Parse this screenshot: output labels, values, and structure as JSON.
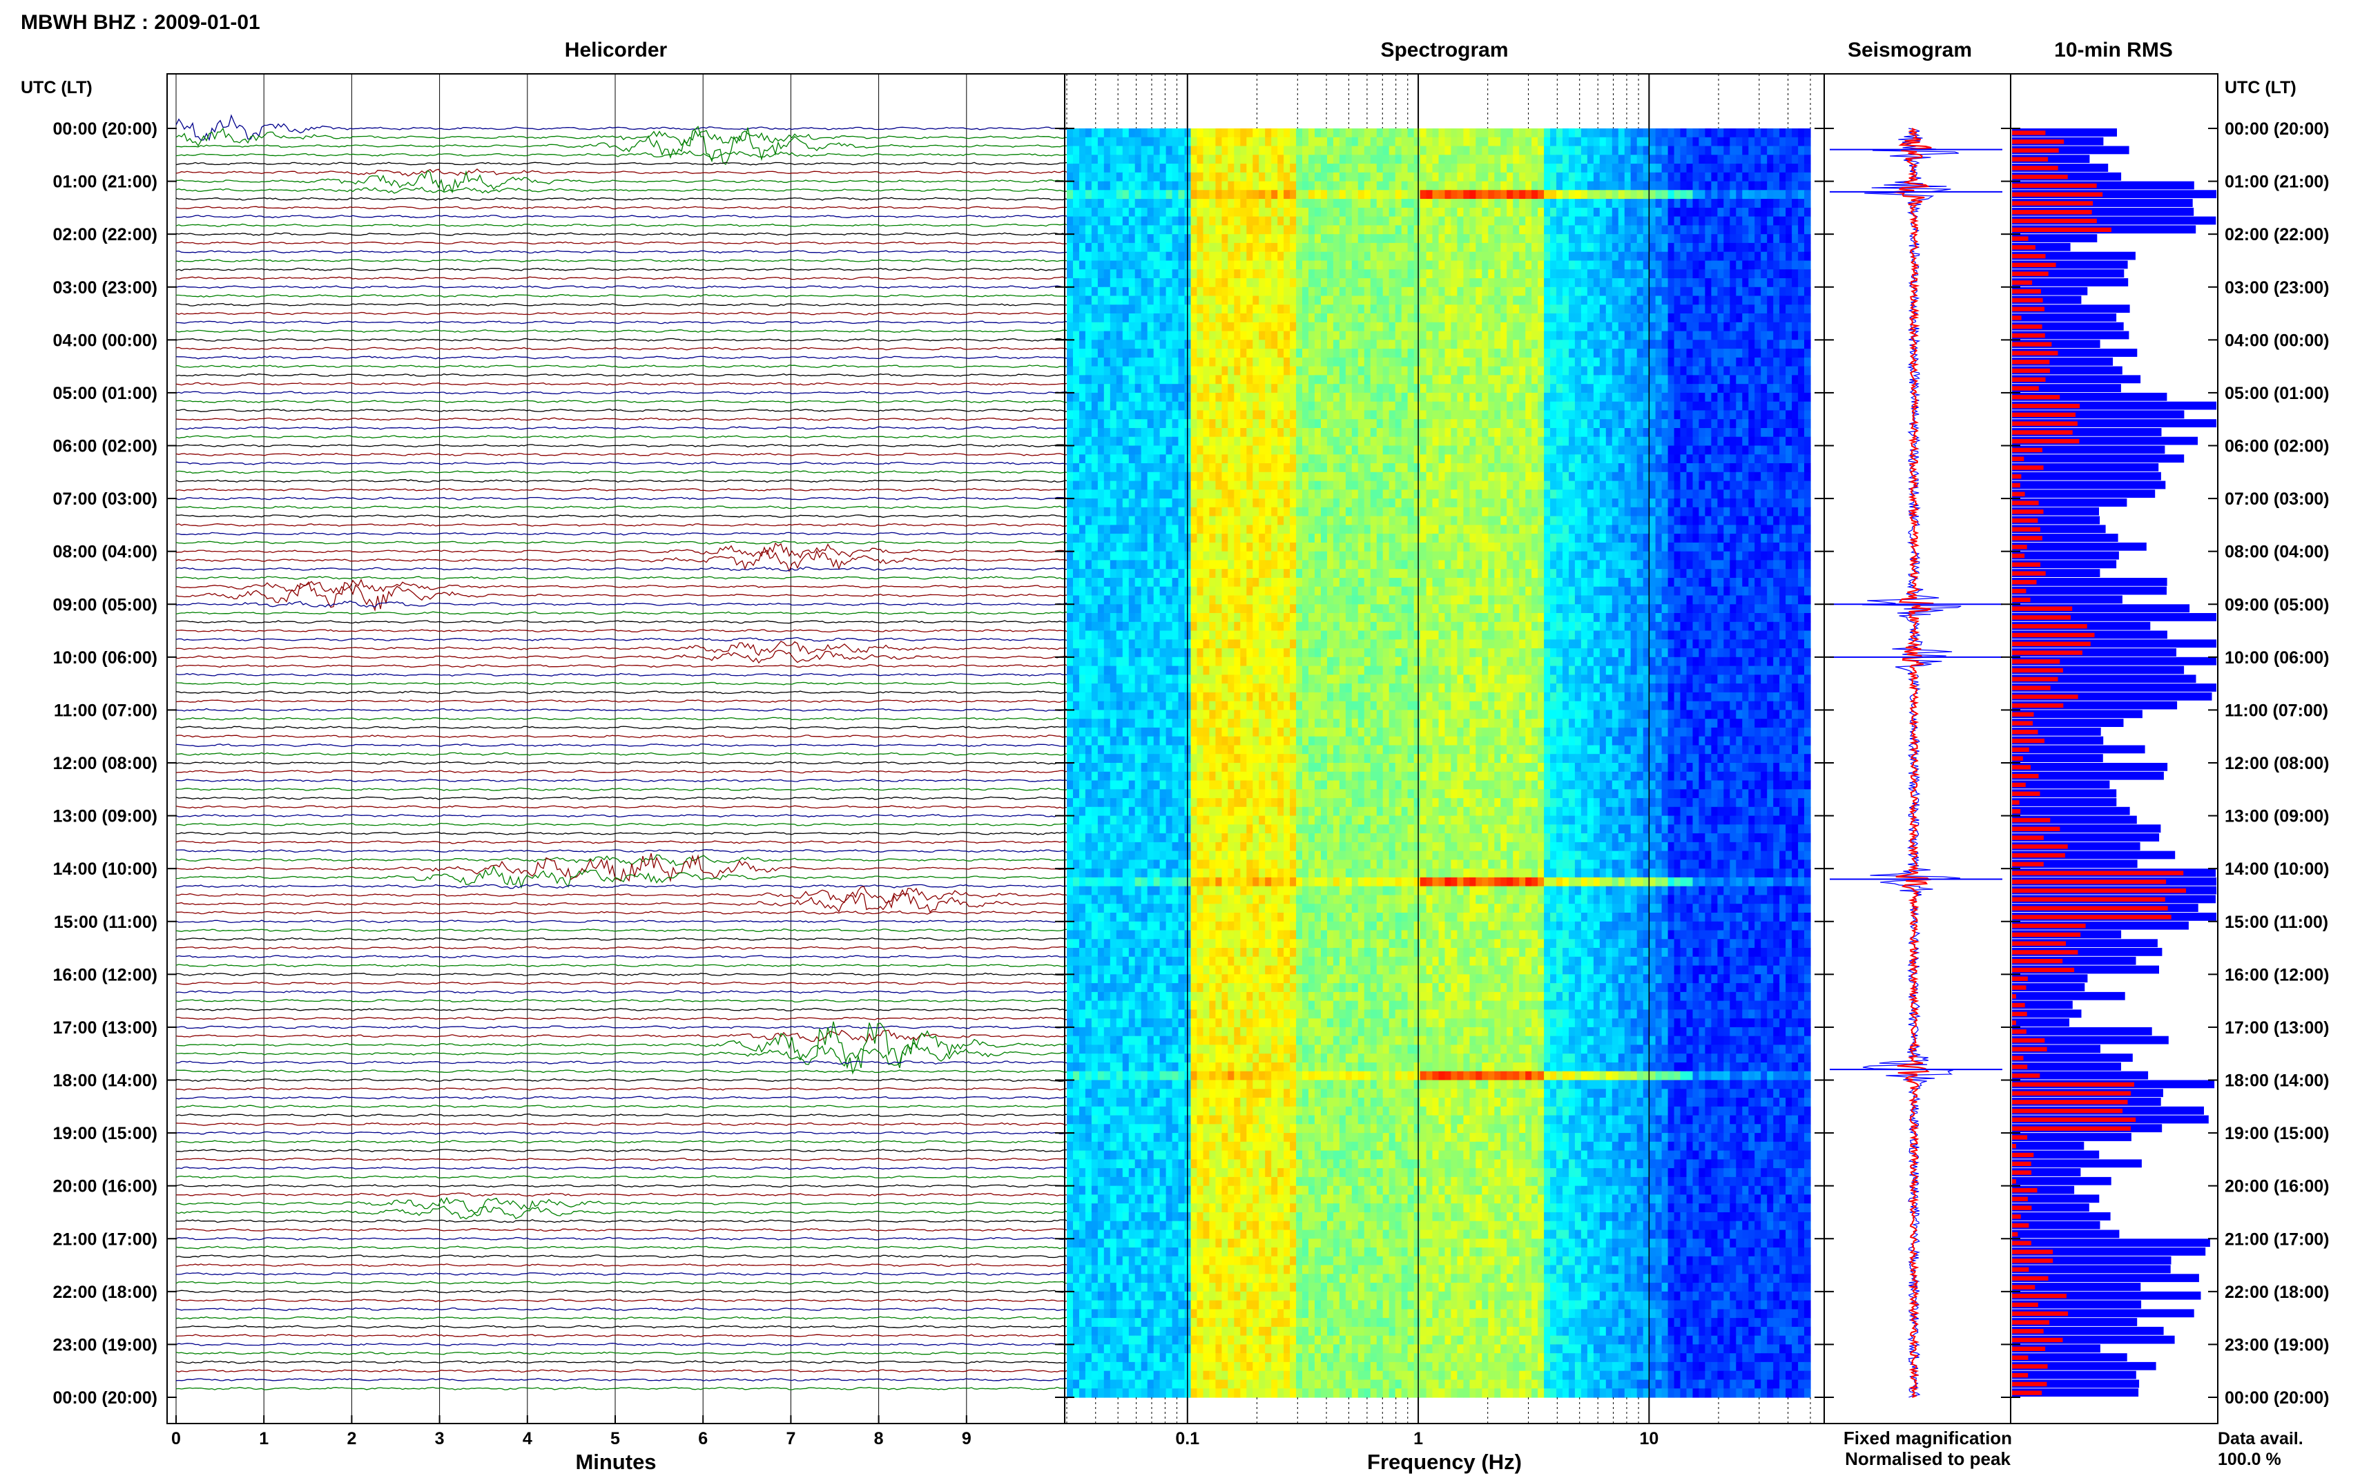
{
  "header": {
    "title": "MBWH BHZ : 2009-01-01",
    "utc_label": "UTC (LT)"
  },
  "panels": {
    "helicorder": "Helicorder",
    "spectrogram": "Spectrogram",
    "seismogram": "Seismogram",
    "rms": "10-min RMS"
  },
  "legend": {
    "fixed": "Fixed magnification",
    "normalised": "Normalised to peak",
    "fixed_color": "#1010ff",
    "normalised_color": "#ff1010"
  },
  "data_avail": {
    "label": "Data avail.",
    "value": "100.0 %"
  },
  "colors": {
    "trace_palette": [
      "#000000",
      "#8b0000",
      "#00008b",
      "#008000"
    ],
    "rms_fixed": "#0000ff",
    "rms_normalised": "#ff0000"
  },
  "chart_data": [
    {
      "type": "line",
      "panel": "Helicorder",
      "xlabel": "Minutes",
      "x_ticks": [
        "0",
        "1",
        "2",
        "3",
        "4",
        "5",
        "6",
        "7",
        "8",
        "9"
      ],
      "xlim": [
        0,
        10
      ],
      "y_ticks": [
        "00:00 (20:00)",
        "01:00 (21:00)",
        "02:00 (22:00)",
        "03:00 (23:00)",
        "04:00 (00:00)",
        "05:00 (01:00)",
        "06:00 (02:00)",
        "07:00 (03:00)",
        "08:00 (04:00)",
        "09:00 (05:00)",
        "10:00 (06:00)",
        "11:00 (07:00)",
        "12:00 (08:00)",
        "13:00 (09:00)",
        "14:00 (10:00)",
        "15:00 (11:00)",
        "16:00 (12:00)",
        "17:00 (13:00)",
        "18:00 (14:00)",
        "19:00 (15:00)",
        "20:00 (16:00)",
        "21:00 (17:00)",
        "22:00 (18:00)",
        "23:00 (19:00)",
        "00:00 (20:00)"
      ],
      "rows_per_hour": 6,
      "hours": 24,
      "events": [
        {
          "hour": 0.05,
          "minute": 0.4,
          "amp": 2.2,
          "color": "#00008b"
        },
        {
          "hour": 0.3,
          "minute": 6.2,
          "amp": 3.0,
          "color": "#008000"
        },
        {
          "hour": 1.0,
          "minute": 3.0,
          "amp": 1.5,
          "color": "#008000"
        },
        {
          "hour": 8.8,
          "minute": 1.9,
          "amp": 2.4,
          "color": "#8b0000"
        },
        {
          "hour": 8.1,
          "minute": 7.0,
          "amp": 1.8,
          "color": "#8b0000"
        },
        {
          "hour": 9.9,
          "minute": 7.0,
          "amp": 1.4,
          "color": "#8b0000"
        },
        {
          "hour": 14.0,
          "minute": 5.5,
          "amp": 2.6,
          "color": "#8b0000"
        },
        {
          "hour": 14.1,
          "minute": 4.0,
          "amp": 2.0,
          "color": "#008000"
        },
        {
          "hour": 14.6,
          "minute": 8.0,
          "amp": 2.0,
          "color": "#8b0000"
        },
        {
          "hour": 17.4,
          "minute": 8.0,
          "amp": 2.6,
          "color": "#008000"
        },
        {
          "hour": 17.3,
          "minute": 7.6,
          "amp": 2.2,
          "color": "#8b0000"
        },
        {
          "hour": 20.4,
          "minute": 3.5,
          "amp": 1.4,
          "color": "#008000"
        }
      ]
    },
    {
      "type": "heatmap",
      "panel": "Spectrogram",
      "xlabel": "Frequency (Hz)",
      "x_scale": "log",
      "xlim": [
        0.03,
        50
      ],
      "x_tick_labels": [
        "0.1",
        "1",
        "10"
      ],
      "colormap": "jet",
      "bright_bands_hz": [
        1.5,
        4.0
      ],
      "strong_lines_utc_hours": [
        1.2,
        14.2,
        17.8
      ]
    },
    {
      "type": "line",
      "panel": "Seismogram",
      "series": [
        {
          "name": "Fixed magnification",
          "color": "#0000ff"
        },
        {
          "name": "Normalised to peak",
          "color": "#ff0000"
        }
      ],
      "spike_utc_hours": [
        0.4,
        1.2,
        9.0,
        10.0,
        14.2,
        17.8
      ]
    },
    {
      "type": "bar",
      "panel": "10-min RMS",
      "orientation": "horizontal",
      "bins_per_hour": 6,
      "hourly_fixed_level": [
        0.55,
        0.95,
        0.45,
        0.5,
        0.6,
        0.9,
        0.7,
        0.55,
        0.6,
        0.85,
        0.9,
        0.55,
        0.6,
        0.75,
        0.95,
        0.7,
        0.45,
        0.6,
        0.9,
        0.5,
        0.45,
        0.8,
        0.75,
        0.6
      ],
      "hourly_normalised_level": [
        0.2,
        0.45,
        0.15,
        0.1,
        0.15,
        0.3,
        0.1,
        0.08,
        0.1,
        0.35,
        0.25,
        0.1,
        0.1,
        0.2,
        0.8,
        0.3,
        0.05,
        0.1,
        0.6,
        0.05,
        0.05,
        0.15,
        0.2,
        0.15
      ],
      "series": [
        {
          "name": "Fixed magnification",
          "color": "#0000ff"
        },
        {
          "name": "Normalised to peak",
          "color": "#ff0000"
        }
      ]
    }
  ]
}
